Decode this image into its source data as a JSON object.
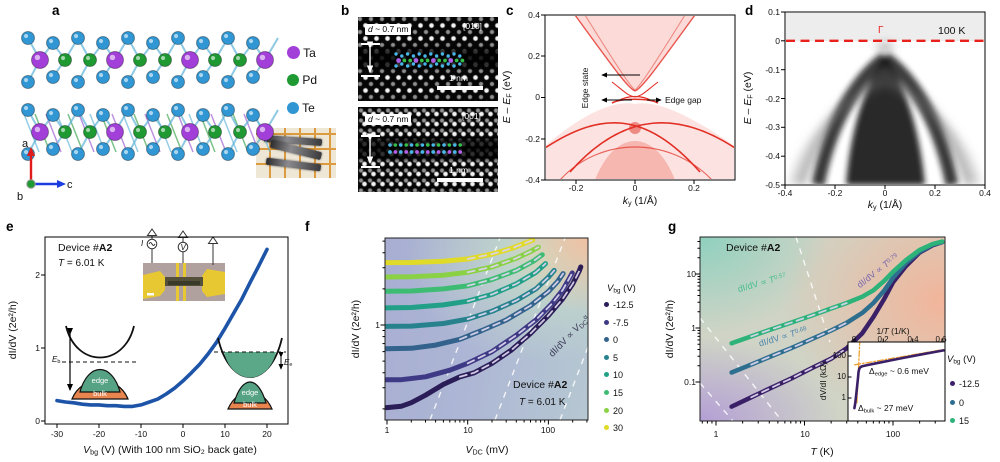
{
  "labels": {
    "E0": "E – E",
    "EF": "F",
    "EeV": " (eV)",
    "k": "k",
    "ksub": "y",
    "kunit": " (1/Å)",
    "g_cond": "dI/dV (2e²/h)"
  },
  "panel_a": {
    "label": "a",
    "legend": [
      {
        "name": "Ta",
        "color": "#a33fd9"
      },
      {
        "name": "Pd",
        "color": "#1f9a33"
      },
      {
        "name": "Te",
        "color": "#3097d4"
      }
    ],
    "axes": {
      "a": "a",
      "b": "b",
      "c": "c"
    }
  },
  "panel_b": {
    "label": "b",
    "top": {
      "d_it": "d",
      "d_rest": " ~ 0.7 nm",
      "direction": "[010]",
      "scalebar": "1 nm"
    },
    "bottom": {
      "d_it": "d",
      "d_rest": " ~ 0.7 nm",
      "direction": "[001]",
      "scalebar": "1 nm"
    }
  },
  "panel_c": {
    "label": "c",
    "yticks": [
      "0.4",
      "0.2",
      "0",
      "-0.2",
      "-0.4"
    ],
    "xticks": [
      "-0.2",
      "0",
      "0.2"
    ],
    "edge_state": "Edge state",
    "edge_gap": "Edge gap"
  },
  "panel_d": {
    "label": "d",
    "yticks": [
      "0.1",
      "0",
      "-0.1",
      "-0.2",
      "-0.3",
      "-0.4",
      "-0.5"
    ],
    "xticks": [
      "-0.4",
      "-0.2",
      "0",
      "0.2",
      "0.4"
    ],
    "gamma": "Γ",
    "temperature": "100 K"
  },
  "panel_e": {
    "label": "e",
    "device_p0": "Device #",
    "device_b": "A2",
    "temp_it": "T",
    "temp_rest": " = 6.01 K",
    "yticks": [
      "0",
      "1",
      "2"
    ],
    "xticks": [
      "-30",
      "-20",
      "-10",
      "0",
      "10",
      "20"
    ],
    "ylabel": "dI/dV (2e²/h)",
    "xlabel_it": "V",
    "xlabel_sub": "bg",
    "xlabel_rest": " (V) (With 100 nm SiO₂ back gate)",
    "inset_I": "I",
    "inset_V": "V",
    "schematic_left": {
      "Eit": "E",
      "Esub": "b",
      "edge": "edge",
      "bulk": "bulk"
    },
    "schematic_right": {
      "Eit": "E",
      "Esub": "e",
      "edge": "edge",
      "bulk": "bulk"
    }
  },
  "panel_f": {
    "label": "f",
    "yticks": [
      "1"
    ],
    "xticks": [
      "1",
      "10",
      "100"
    ],
    "ylabel": "dI/dV (2e²/h)",
    "xlabel_it": "V",
    "xlabel_sub": "DC",
    "xlabel_rest": " (mV)",
    "annot_p0": "dI/dV ∝ ",
    "annot_it": "V",
    "annot_sub": "DC",
    "annot_sup": "α",
    "device_p0": "Device #",
    "device_b": "A2",
    "temp_it": "T",
    "temp_rest": " = 6.01 K",
    "legend": {
      "title_it": "V",
      "title_sub": "bg",
      "title_rest": " (V)",
      "entries": [
        {
          "v": "-12.5",
          "color": "#2b1d57"
        },
        {
          "v": "-7.5",
          "color": "#3f3a85"
        },
        {
          "v": "0",
          "color": "#33638d"
        },
        {
          "v": "5",
          "color": "#28828e"
        },
        {
          "v": "10",
          "color": "#21a087"
        },
        {
          "v": "15",
          "color": "#3fbc73"
        },
        {
          "v": "20",
          "color": "#8bd146"
        },
        {
          "v": "30",
          "color": "#e0da28"
        }
      ]
    }
  },
  "panel_g": {
    "label": "g",
    "device_p0": "Device #",
    "device_b": "A2",
    "yticks": [
      "10",
      "1",
      "0.1"
    ],
    "xticks": [
      "1",
      "10",
      "100"
    ],
    "ylabel": "dI/dV (2e²/h)",
    "xlabel_it": "T",
    "xlabel_rest": " (K)",
    "annot_p0": "dI/dV ∝ ",
    "annot_it": "T",
    "annot_sups": [
      "0.57",
      "0.68",
      "0.79"
    ],
    "annot_colors": [
      "#49bd8d",
      "#4f86aa",
      "#7a68ad"
    ],
    "legend": {
      "title_it": "V",
      "title_sub": "bg",
      "title_rest": " (V)",
      "entries": [
        {
          "v": "-12.5",
          "color": "#3a2066"
        },
        {
          "v": "0",
          "color": "#2e6e8e"
        },
        {
          "v": "15",
          "color": "#2db37a"
        }
      ]
    },
    "inset": {
      "xlabel_p0": "1/",
      "xlabel_it": "T",
      "xlabel_rest": " (1/K)",
      "xticks": [
        "0",
        "0.2",
        "0.4",
        "0.6"
      ],
      "yticks": [
        "100",
        "10",
        "1"
      ],
      "ylabel": "dV/dI (kΩ)",
      "edge_p0": "Δ",
      "edge_sub": "edge",
      "edge_rest": " ~ 0.6 meV",
      "bulk_p0": "Δ",
      "bulk_sub": "bulk",
      "bulk_rest": " ~ 27 meV"
    }
  },
  "chart_data": [
    {
      "id": "e",
      "type": "line",
      "xlabel": "Vbg (V) (With 100 nm SiO2 back gate)",
      "ylabel": "dI/dV (2e2/h)",
      "xlim": [
        -33,
        22
      ],
      "ylim": [
        0,
        2.5
      ],
      "series": [
        {
          "name": "dI/dV at T = 6.01 K",
          "color": "#1d54a8",
          "points": [
            [
              -30,
              0.28
            ],
            [
              -28,
              0.26
            ],
            [
              -26,
              0.25
            ],
            [
              -24,
              0.23
            ],
            [
              -22,
              0.22
            ],
            [
              -20,
              0.22
            ],
            [
              -18,
              0.21
            ],
            [
              -16,
              0.21
            ],
            [
              -14,
              0.2
            ],
            [
              -12,
              0.2
            ],
            [
              -10,
              0.22
            ],
            [
              -8,
              0.26
            ],
            [
              -6,
              0.3
            ],
            [
              -4,
              0.37
            ],
            [
              -2,
              0.45
            ],
            [
              0,
              0.55
            ],
            [
              2,
              0.66
            ],
            [
              4,
              0.78
            ],
            [
              6,
              0.92
            ],
            [
              8,
              1.08
            ],
            [
              10,
              1.27
            ],
            [
              12,
              1.47
            ],
            [
              14,
              1.67
            ],
            [
              16,
              1.9
            ],
            [
              18,
              2.12
            ],
            [
              20,
              2.35
            ]
          ]
        }
      ]
    },
    {
      "id": "f",
      "type": "line",
      "xscale": "log",
      "yscale": "log",
      "xlabel": "VDC (mV)",
      "ylabel": "dI/dV (2e2/h)",
      "xlim": [
        0.55,
        320
      ],
      "ylim": [
        0.13,
        5.5
      ],
      "series": [
        {
          "name": "-12.5",
          "color": "#2b1d57",
          "points": [
            [
              0.55,
              0.205
            ],
            [
              1,
              0.205
            ],
            [
              1.5,
              0.21
            ],
            [
              2,
              0.225
            ],
            [
              3,
              0.26
            ],
            [
              5,
              0.32
            ],
            [
              8,
              0.37
            ],
            [
              12,
              0.4
            ],
            [
              20,
              0.48
            ],
            [
              35,
              0.62
            ],
            [
              60,
              0.85
            ],
            [
              100,
              1.2
            ],
            [
              150,
              1.65
            ],
            [
              200,
              2.2
            ],
            [
              240,
              2.8
            ],
            [
              252,
              3.05
            ]
          ]
        },
        {
          "name": "-7.5",
          "color": "#3f3a85",
          "points": [
            [
              0.55,
              0.35
            ],
            [
              1.5,
              0.35
            ],
            [
              3,
              0.37
            ],
            [
              6,
              0.42
            ],
            [
              10,
              0.48
            ],
            [
              20,
              0.6
            ],
            [
              40,
              0.82
            ],
            [
              70,
              1.1
            ],
            [
              110,
              1.5
            ],
            [
              150,
              1.95
            ],
            [
              185,
              2.5
            ],
            [
              198,
              2.72
            ]
          ]
        },
        {
          "name": "0",
          "color": "#33638d",
          "points": [
            [
              0.55,
              0.63
            ],
            [
              2,
              0.64
            ],
            [
              4,
              0.68
            ],
            [
              8,
              0.76
            ],
            [
              15,
              0.9
            ],
            [
              30,
              1.1
            ],
            [
              60,
              1.45
            ],
            [
              100,
              1.9
            ],
            [
              130,
              2.3
            ],
            [
              152,
              2.68
            ]
          ]
        },
        {
          "name": "5",
          "color": "#28828e",
          "points": [
            [
              0.55,
              0.97
            ],
            [
              2,
              0.98
            ],
            [
              5,
              1.03
            ],
            [
              10,
              1.12
            ],
            [
              20,
              1.3
            ],
            [
              40,
              1.6
            ],
            [
              70,
              2.0
            ],
            [
              100,
              2.5
            ],
            [
              118,
              2.85
            ]
          ]
        },
        {
          "name": "10",
          "color": "#21a087",
          "points": [
            [
              0.55,
              1.38
            ],
            [
              2,
              1.4
            ],
            [
              5,
              1.47
            ],
            [
              10,
              1.58
            ],
            [
              20,
              1.8
            ],
            [
              40,
              2.2
            ],
            [
              70,
              2.75
            ],
            [
              92,
              3.25
            ]
          ]
        },
        {
          "name": "15",
          "color": "#3fbc73",
          "points": [
            [
              0.55,
              1.9
            ],
            [
              2,
              1.92
            ],
            [
              5,
              2.0
            ],
            [
              10,
              2.12
            ],
            [
              20,
              2.4
            ],
            [
              40,
              2.85
            ],
            [
              65,
              3.4
            ],
            [
              84,
              3.85
            ]
          ]
        },
        {
          "name": "20",
          "color": "#8bd146",
          "points": [
            [
              0.55,
              2.5
            ],
            [
              2,
              2.52
            ],
            [
              5,
              2.6
            ],
            [
              10,
              2.75
            ],
            [
              20,
              3.05
            ],
            [
              40,
              3.6
            ],
            [
              60,
              4.1
            ],
            [
              75,
              4.45
            ]
          ]
        },
        {
          "name": "30",
          "color": "#e0da28",
          "points": [
            [
              0.55,
              3.3
            ],
            [
              2,
              3.32
            ],
            [
              5,
              3.4
            ],
            [
              10,
              3.55
            ],
            [
              20,
              3.9
            ],
            [
              35,
              4.35
            ],
            [
              55,
              4.9
            ],
            [
              64,
              5.1
            ]
          ]
        }
      ]
    },
    {
      "id": "g",
      "type": "line",
      "xscale": "log",
      "yscale": "log",
      "xlabel": "T (K)",
      "ylabel": "dI/dV (2e2/h)",
      "xlim": [
        0.66,
        390
      ],
      "ylim": [
        0.018,
        50
      ],
      "series": [
        {
          "name": "-12.5",
          "color": "#3a2066",
          "points": [
            [
              1.5,
              0.035
            ],
            [
              2.5,
              0.052
            ],
            [
              4,
              0.075
            ],
            [
              7,
              0.115
            ],
            [
              12,
              0.18
            ],
            [
              20,
              0.27
            ],
            [
              30,
              0.42
            ],
            [
              45,
              0.8
            ],
            [
              60,
              1.6
            ],
            [
              80,
              3.5
            ],
            [
              100,
              7
            ],
            [
              140,
              14
            ],
            [
              200,
              25
            ],
            [
              280,
              34
            ],
            [
              360,
              39
            ]
          ]
        },
        {
          "name": "0",
          "color": "#2e6e8e",
          "points": [
            [
              1.5,
              0.15
            ],
            [
              2.5,
              0.21
            ],
            [
              4,
              0.29
            ],
            [
              7,
              0.42
            ],
            [
              12,
              0.62
            ],
            [
              20,
              0.9
            ],
            [
              30,
              1.25
            ],
            [
              45,
              1.9
            ],
            [
              60,
              2.9
            ],
            [
              80,
              5
            ],
            [
              100,
              8.5
            ],
            [
              140,
              16
            ],
            [
              200,
              26
            ],
            [
              280,
              35
            ],
            [
              360,
              39
            ]
          ]
        },
        {
          "name": "15",
          "color": "#2db37a",
          "points": [
            [
              1.5,
              0.52
            ],
            [
              2.5,
              0.7
            ],
            [
              4,
              0.92
            ],
            [
              7,
              1.25
            ],
            [
              12,
              1.7
            ],
            [
              20,
              2.3
            ],
            [
              30,
              2.9
            ],
            [
              45,
              3.8
            ],
            [
              60,
              5
            ],
            [
              80,
              7.5
            ],
            [
              100,
              11
            ],
            [
              140,
              18
            ],
            [
              200,
              28
            ],
            [
              280,
              36
            ],
            [
              360,
              40
            ]
          ]
        }
      ]
    },
    {
      "id": "g_inset",
      "type": "line",
      "yscale": "log",
      "xlabel": "1/T (1/K)",
      "ylabel": "dV/dI (kOhm)",
      "xlim": [
        0,
        0.62
      ],
      "ylim": [
        0.2,
        450
      ],
      "series": [
        {
          "name": "dV/dI, Vbg = -12.5 V",
          "color": "#3a2066",
          "points": [
            [
              0.003,
              0.33
            ],
            [
              0.008,
              0.55
            ],
            [
              0.015,
              1.4
            ],
            [
              0.022,
              4
            ],
            [
              0.027,
              9
            ],
            [
              0.031,
              17
            ],
            [
              0.036,
              25
            ],
            [
              0.045,
              30
            ],
            [
              0.06,
              33
            ],
            [
              0.09,
              37
            ],
            [
              0.15,
              45
            ],
            [
              0.25,
              62
            ],
            [
              0.35,
              85
            ],
            [
              0.45,
              115
            ],
            [
              0.55,
              155
            ],
            [
              0.61,
              185
            ]
          ]
        }
      ],
      "fits": [
        {
          "name": "edge activation fit",
          "color": "#f0a030",
          "points": [
            [
              0.005,
              38
            ],
            [
              0.61,
              205
            ]
          ]
        },
        {
          "name": "bulk activation fit",
          "color": "#f0a030",
          "points": [
            [
              0.02,
              0.6
            ],
            [
              0.039,
              420
            ]
          ]
        }
      ]
    }
  ]
}
